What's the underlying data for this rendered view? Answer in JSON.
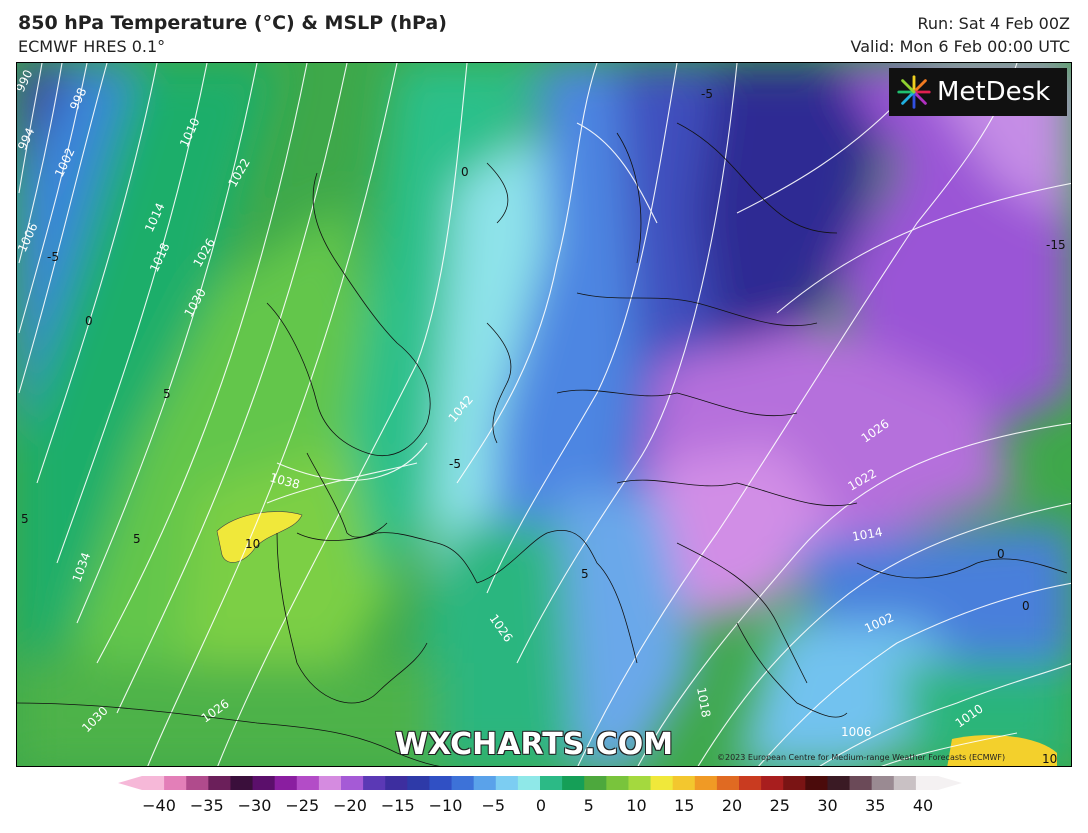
{
  "header": {
    "title": "850 hPa Temperature (°C) & MSLP (hPa)",
    "model": "ECMWF HRES 0.1°",
    "run": "Run: Sat 4 Feb 00Z",
    "valid": "Valid: Mon 6 Feb 00:00 UTC"
  },
  "logo": {
    "name": "MetDesk",
    "icon": "metdesk-burst-icon"
  },
  "brand": "WXCHARTS.COM",
  "copyright": "©2023 European Centre for Medium-range Weather Forecasts (ECMWF)",
  "map": {
    "isobar_labels": [
      "990",
      "994",
      "998",
      "1002",
      "1006",
      "1010",
      "1014",
      "1018",
      "1022",
      "1026",
      "1030",
      "1038",
      "1042",
      "1034",
      "1026",
      "1030",
      "1026",
      "1026",
      "1022",
      "1018",
      "1014",
      "1010",
      "1006",
      "1002"
    ],
    "temp_labels": [
      "-5",
      "0",
      "5",
      "10",
      "-15",
      "-5",
      "0",
      "5",
      "-5",
      "0",
      "5",
      "10",
      "0",
      "5"
    ]
  },
  "colorbar": {
    "ticks": [
      "−40",
      "−35",
      "−30",
      "−25",
      "−20",
      "−15",
      "−10",
      "−5",
      "0",
      "5",
      "10",
      "15",
      "20",
      "25",
      "30",
      "35",
      "40"
    ],
    "colors": [
      "#f6b8d8",
      "#e37fb8",
      "#b04b8c",
      "#6b1f5a",
      "#3a0f3b",
      "#5b0f6b",
      "#8a1ea0",
      "#b34cc7",
      "#d58be0",
      "#a55ad6",
      "#5b39b5",
      "#3d2e9f",
      "#2e3aa8",
      "#3050c4",
      "#3d72d8",
      "#5aa2ea",
      "#7ccdf2",
      "#8fe8e8",
      "#2cba86",
      "#159f57",
      "#4da83d",
      "#79c43c",
      "#a4d93e",
      "#f0e83a",
      "#f3c72e",
      "#f09a25",
      "#e06a22",
      "#c93b20",
      "#a81e1e",
      "#7a1414",
      "#4b0b0b",
      "#3a1a24",
      "#6b4a58",
      "#9a8a92",
      "#c9c1c4",
      "#f4f1f2"
    ]
  }
}
